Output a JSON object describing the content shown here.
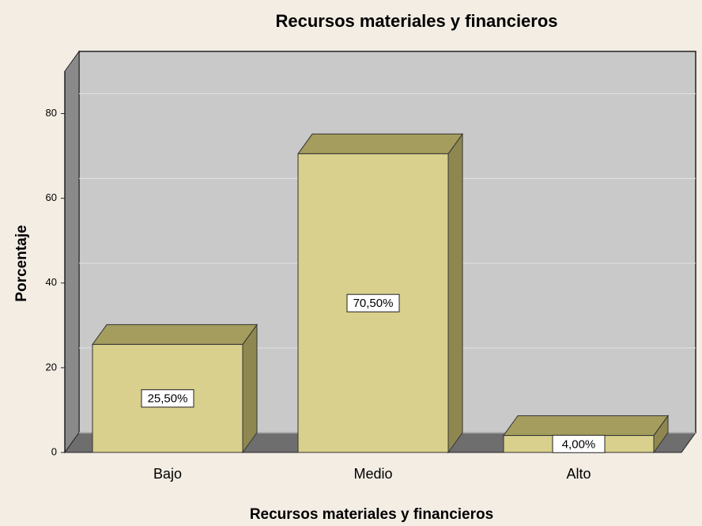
{
  "chart_data": {
    "type": "bar3d",
    "title": "Recursos materiales y financieros",
    "x_label": "Recursos materiales y financieros",
    "y_label": "Porcentaje",
    "categories": [
      "Bajo",
      "Medio",
      "Alto"
    ],
    "values": [
      25.5,
      70.5,
      4.0
    ],
    "value_labels": [
      "25,50%",
      "70,50%",
      "4,00%"
    ],
    "color": "#d8d08c",
    "ylim": [
      0,
      90
    ],
    "yticks": [
      0,
      20,
      40,
      60,
      80
    ],
    "grid": true
  }
}
